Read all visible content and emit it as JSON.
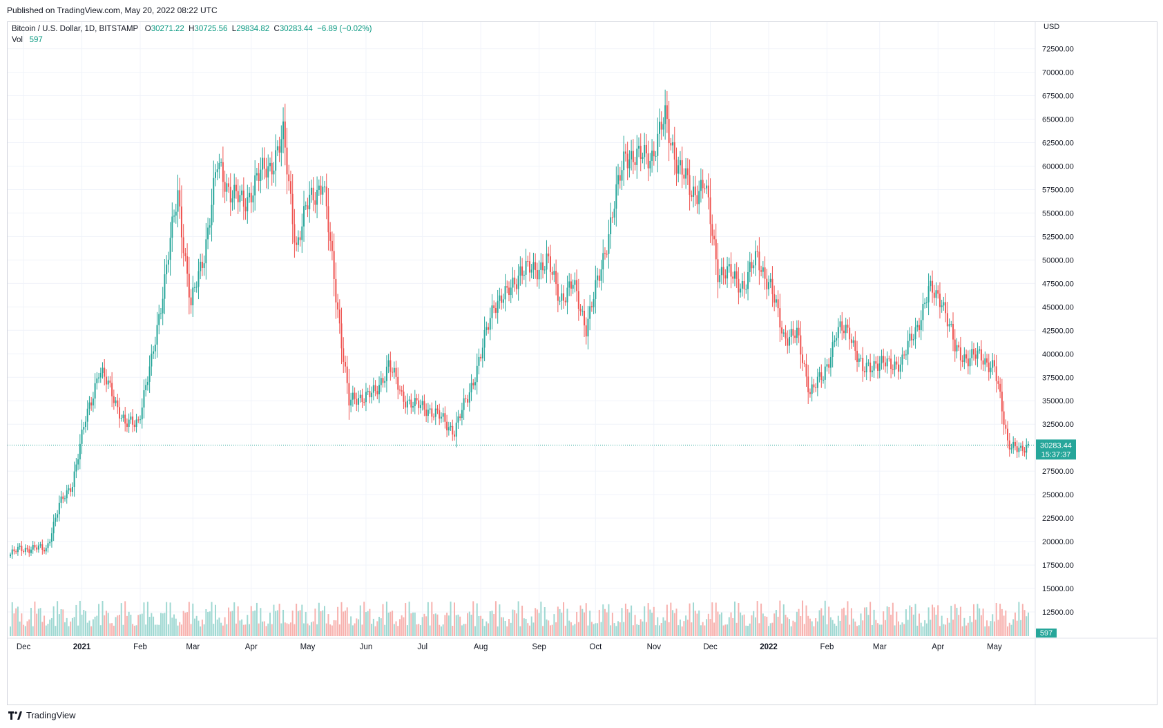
{
  "header": {
    "published": "Published on TradingView.com, May 20, 2022 08:22 UTC"
  },
  "legend": {
    "symbol": "Bitcoin / U.S. Dollar, 1D, BITSTAMP",
    "o_label": "O",
    "o_value": "30271.22",
    "h_label": "H",
    "h_value": "30725.56",
    "l_label": "L",
    "l_value": "29834.82",
    "c_label": "C",
    "c_value": "30283.44",
    "change": "−6.89 (−0.02%)",
    "vol_label": "Vol",
    "vol_value": "597"
  },
  "footer": {
    "brand": "TradingView"
  },
  "colors": {
    "up": "#26a69a",
    "down": "#ef5350",
    "up_vol": "#9fd8d2",
    "down_vol": "#f7b1ae",
    "grid": "#f0f3fa",
    "price_tag": "#26a69a"
  },
  "chart_data": {
    "type": "candlestick",
    "currency": "USD",
    "price_axis_labels": [
      "72500.00",
      "70000.00",
      "67500.00",
      "65000.00",
      "62500.00",
      "60000.00",
      "57500.00",
      "55000.00",
      "52500.00",
      "50000.00",
      "47500.00",
      "45000.00",
      "42500.00",
      "40000.00",
      "37500.00",
      "35000.00",
      "32500.00",
      "27500.00",
      "25000.00",
      "22500.00",
      "20000.00",
      "17500.00",
      "15000.00",
      "12500.00"
    ],
    "ylim": [
      10000,
      73500
    ],
    "time_axis_labels": [
      "Dec",
      "2021",
      "Feb",
      "Mar",
      "Apr",
      "May",
      "Jun",
      "Jul",
      "Aug",
      "Sep",
      "Oct",
      "Nov",
      "Dec",
      "2022",
      "Feb",
      "Mar",
      "Apr",
      "May"
    ],
    "last_price": "30283.44",
    "countdown": "15:37:37",
    "last_volume": "597",
    "weekly_closes": [
      {
        "date": "2020-11-22",
        "close": 18400
      },
      {
        "date": "2020-11-29",
        "close": 19200
      },
      {
        "date": "2020-12-06",
        "close": 19300
      },
      {
        "date": "2020-12-13",
        "close": 19200
      },
      {
        "date": "2020-12-20",
        "close": 23800
      },
      {
        "date": "2020-12-27",
        "close": 26300
      },
      {
        "date": "2021-01-03",
        "close": 33000
      },
      {
        "date": "2021-01-10",
        "close": 38200
      },
      {
        "date": "2021-01-17",
        "close": 36000
      },
      {
        "date": "2021-01-24",
        "close": 32300
      },
      {
        "date": "2021-01-31",
        "close": 33000
      },
      {
        "date": "2021-02-07",
        "close": 39000
      },
      {
        "date": "2021-02-14",
        "close": 48000
      },
      {
        "date": "2021-02-21",
        "close": 57000
      },
      {
        "date": "2021-02-28",
        "close": 45000
      },
      {
        "date": "2021-03-07",
        "close": 50800
      },
      {
        "date": "2021-03-14",
        "close": 60000
      },
      {
        "date": "2021-03-21",
        "close": 57400
      },
      {
        "date": "2021-03-28",
        "close": 55800
      },
      {
        "date": "2021-04-04",
        "close": 58700
      },
      {
        "date": "2021-04-11",
        "close": 60000
      },
      {
        "date": "2021-04-18",
        "close": 63000
      },
      {
        "date": "2021-04-25",
        "close": 51500
      },
      {
        "date": "2021-05-02",
        "close": 56500
      },
      {
        "date": "2021-05-09",
        "close": 58300
      },
      {
        "date": "2021-05-16",
        "close": 46500
      },
      {
        "date": "2021-05-23",
        "close": 34700
      },
      {
        "date": "2021-05-30",
        "close": 35600
      },
      {
        "date": "2021-06-06",
        "close": 35700
      },
      {
        "date": "2021-06-13",
        "close": 39000
      },
      {
        "date": "2021-06-20",
        "close": 35500
      },
      {
        "date": "2021-06-27",
        "close": 34500
      },
      {
        "date": "2021-07-04",
        "close": 34200
      },
      {
        "date": "2021-07-11",
        "close": 33100
      },
      {
        "date": "2021-07-18",
        "close": 31800
      },
      {
        "date": "2021-07-25",
        "close": 35400
      },
      {
        "date": "2021-08-01",
        "close": 39800
      },
      {
        "date": "2021-08-08",
        "close": 45500
      },
      {
        "date": "2021-08-15",
        "close": 46200
      },
      {
        "date": "2021-08-22",
        "close": 49000
      },
      {
        "date": "2021-08-29",
        "close": 48800
      },
      {
        "date": "2021-09-05",
        "close": 50000
      },
      {
        "date": "2021-09-12",
        "close": 46000
      },
      {
        "date": "2021-09-19",
        "close": 47300
      },
      {
        "date": "2021-09-26",
        "close": 43000
      },
      {
        "date": "2021-10-03",
        "close": 48200
      },
      {
        "date": "2021-10-10",
        "close": 55000
      },
      {
        "date": "2021-10-17",
        "close": 61500
      },
      {
        "date": "2021-10-24",
        "close": 60800
      },
      {
        "date": "2021-10-31",
        "close": 61300
      },
      {
        "date": "2021-11-07",
        "close": 65000
      },
      {
        "date": "2021-11-14",
        "close": 60000
      },
      {
        "date": "2021-11-21",
        "close": 57200
      },
      {
        "date": "2021-11-28",
        "close": 58000
      },
      {
        "date": "2021-12-05",
        "close": 49000
      },
      {
        "date": "2021-12-12",
        "close": 48300
      },
      {
        "date": "2021-12-19",
        "close": 47300
      },
      {
        "date": "2021-12-26",
        "close": 50400
      },
      {
        "date": "2022-01-02",
        "close": 47000
      },
      {
        "date": "2022-01-09",
        "close": 42000
      },
      {
        "date": "2022-01-16",
        "close": 41900
      },
      {
        "date": "2022-01-23",
        "close": 36100
      },
      {
        "date": "2022-01-30",
        "close": 37500
      },
      {
        "date": "2022-02-06",
        "close": 42300
      },
      {
        "date": "2022-02-13",
        "close": 42500
      },
      {
        "date": "2022-02-20",
        "close": 38000
      },
      {
        "date": "2022-02-27",
        "close": 39200
      },
      {
        "date": "2022-03-06",
        "close": 38700
      },
      {
        "date": "2022-03-13",
        "close": 39300
      },
      {
        "date": "2022-03-20",
        "close": 42500
      },
      {
        "date": "2022-03-27",
        "close": 46600
      },
      {
        "date": "2022-04-03",
        "close": 46000
      },
      {
        "date": "2022-04-10",
        "close": 40500
      },
      {
        "date": "2022-04-17",
        "close": 39500
      },
      {
        "date": "2022-04-24",
        "close": 39800
      },
      {
        "date": "2022-05-01",
        "close": 38400
      },
      {
        "date": "2022-05-08",
        "close": 30800
      },
      {
        "date": "2022-05-15",
        "close": 29400
      },
      {
        "date": "2022-05-19",
        "close": 30283
      }
    ],
    "grid": true,
    "legend_position": "top-left"
  }
}
